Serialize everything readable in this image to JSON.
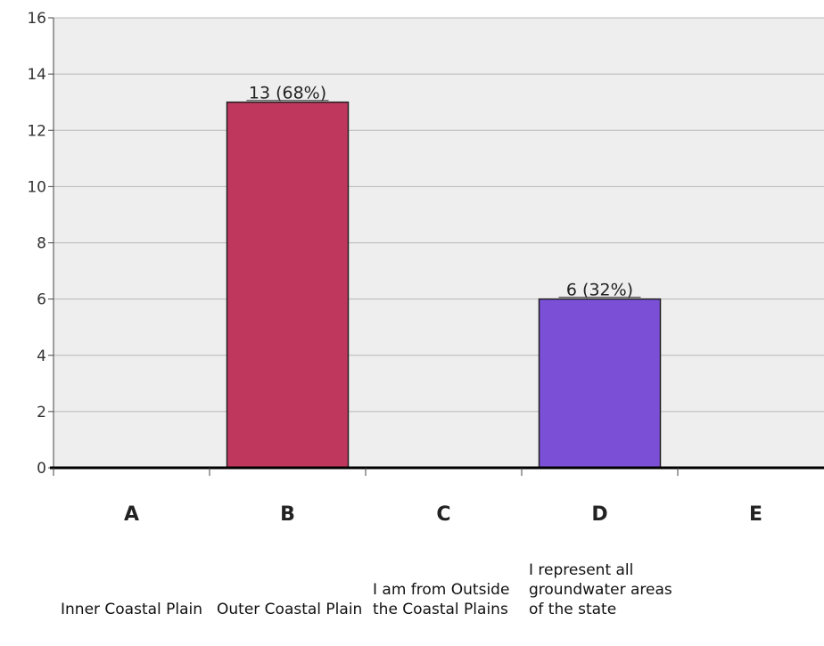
{
  "chart_data": {
    "type": "bar",
    "categories": [
      "A",
      "B",
      "C",
      "D",
      "E"
    ],
    "category_descriptions": [
      "Inner Coastal Plain",
      "Outer Coastal Plain",
      "I am from Outside the Coastal Plains",
      "I represent all groundwater areas of the state",
      ""
    ],
    "values": [
      0,
      13,
      0,
      6,
      0
    ],
    "data_labels": [
      "",
      "13 (68%)",
      "",
      "6 (32%)",
      ""
    ],
    "colors": [
      "#c0375e",
      "#c0375e",
      "#c0375e",
      "#7b4fd6",
      "#7b4fd6"
    ],
    "ylim": [
      0,
      16
    ],
    "yticks": [
      "0",
      "2",
      "4",
      "6",
      "8",
      "10",
      "12",
      "14",
      "16"
    ],
    "grid": true,
    "title": "",
    "xlabel": "",
    "ylabel": ""
  }
}
